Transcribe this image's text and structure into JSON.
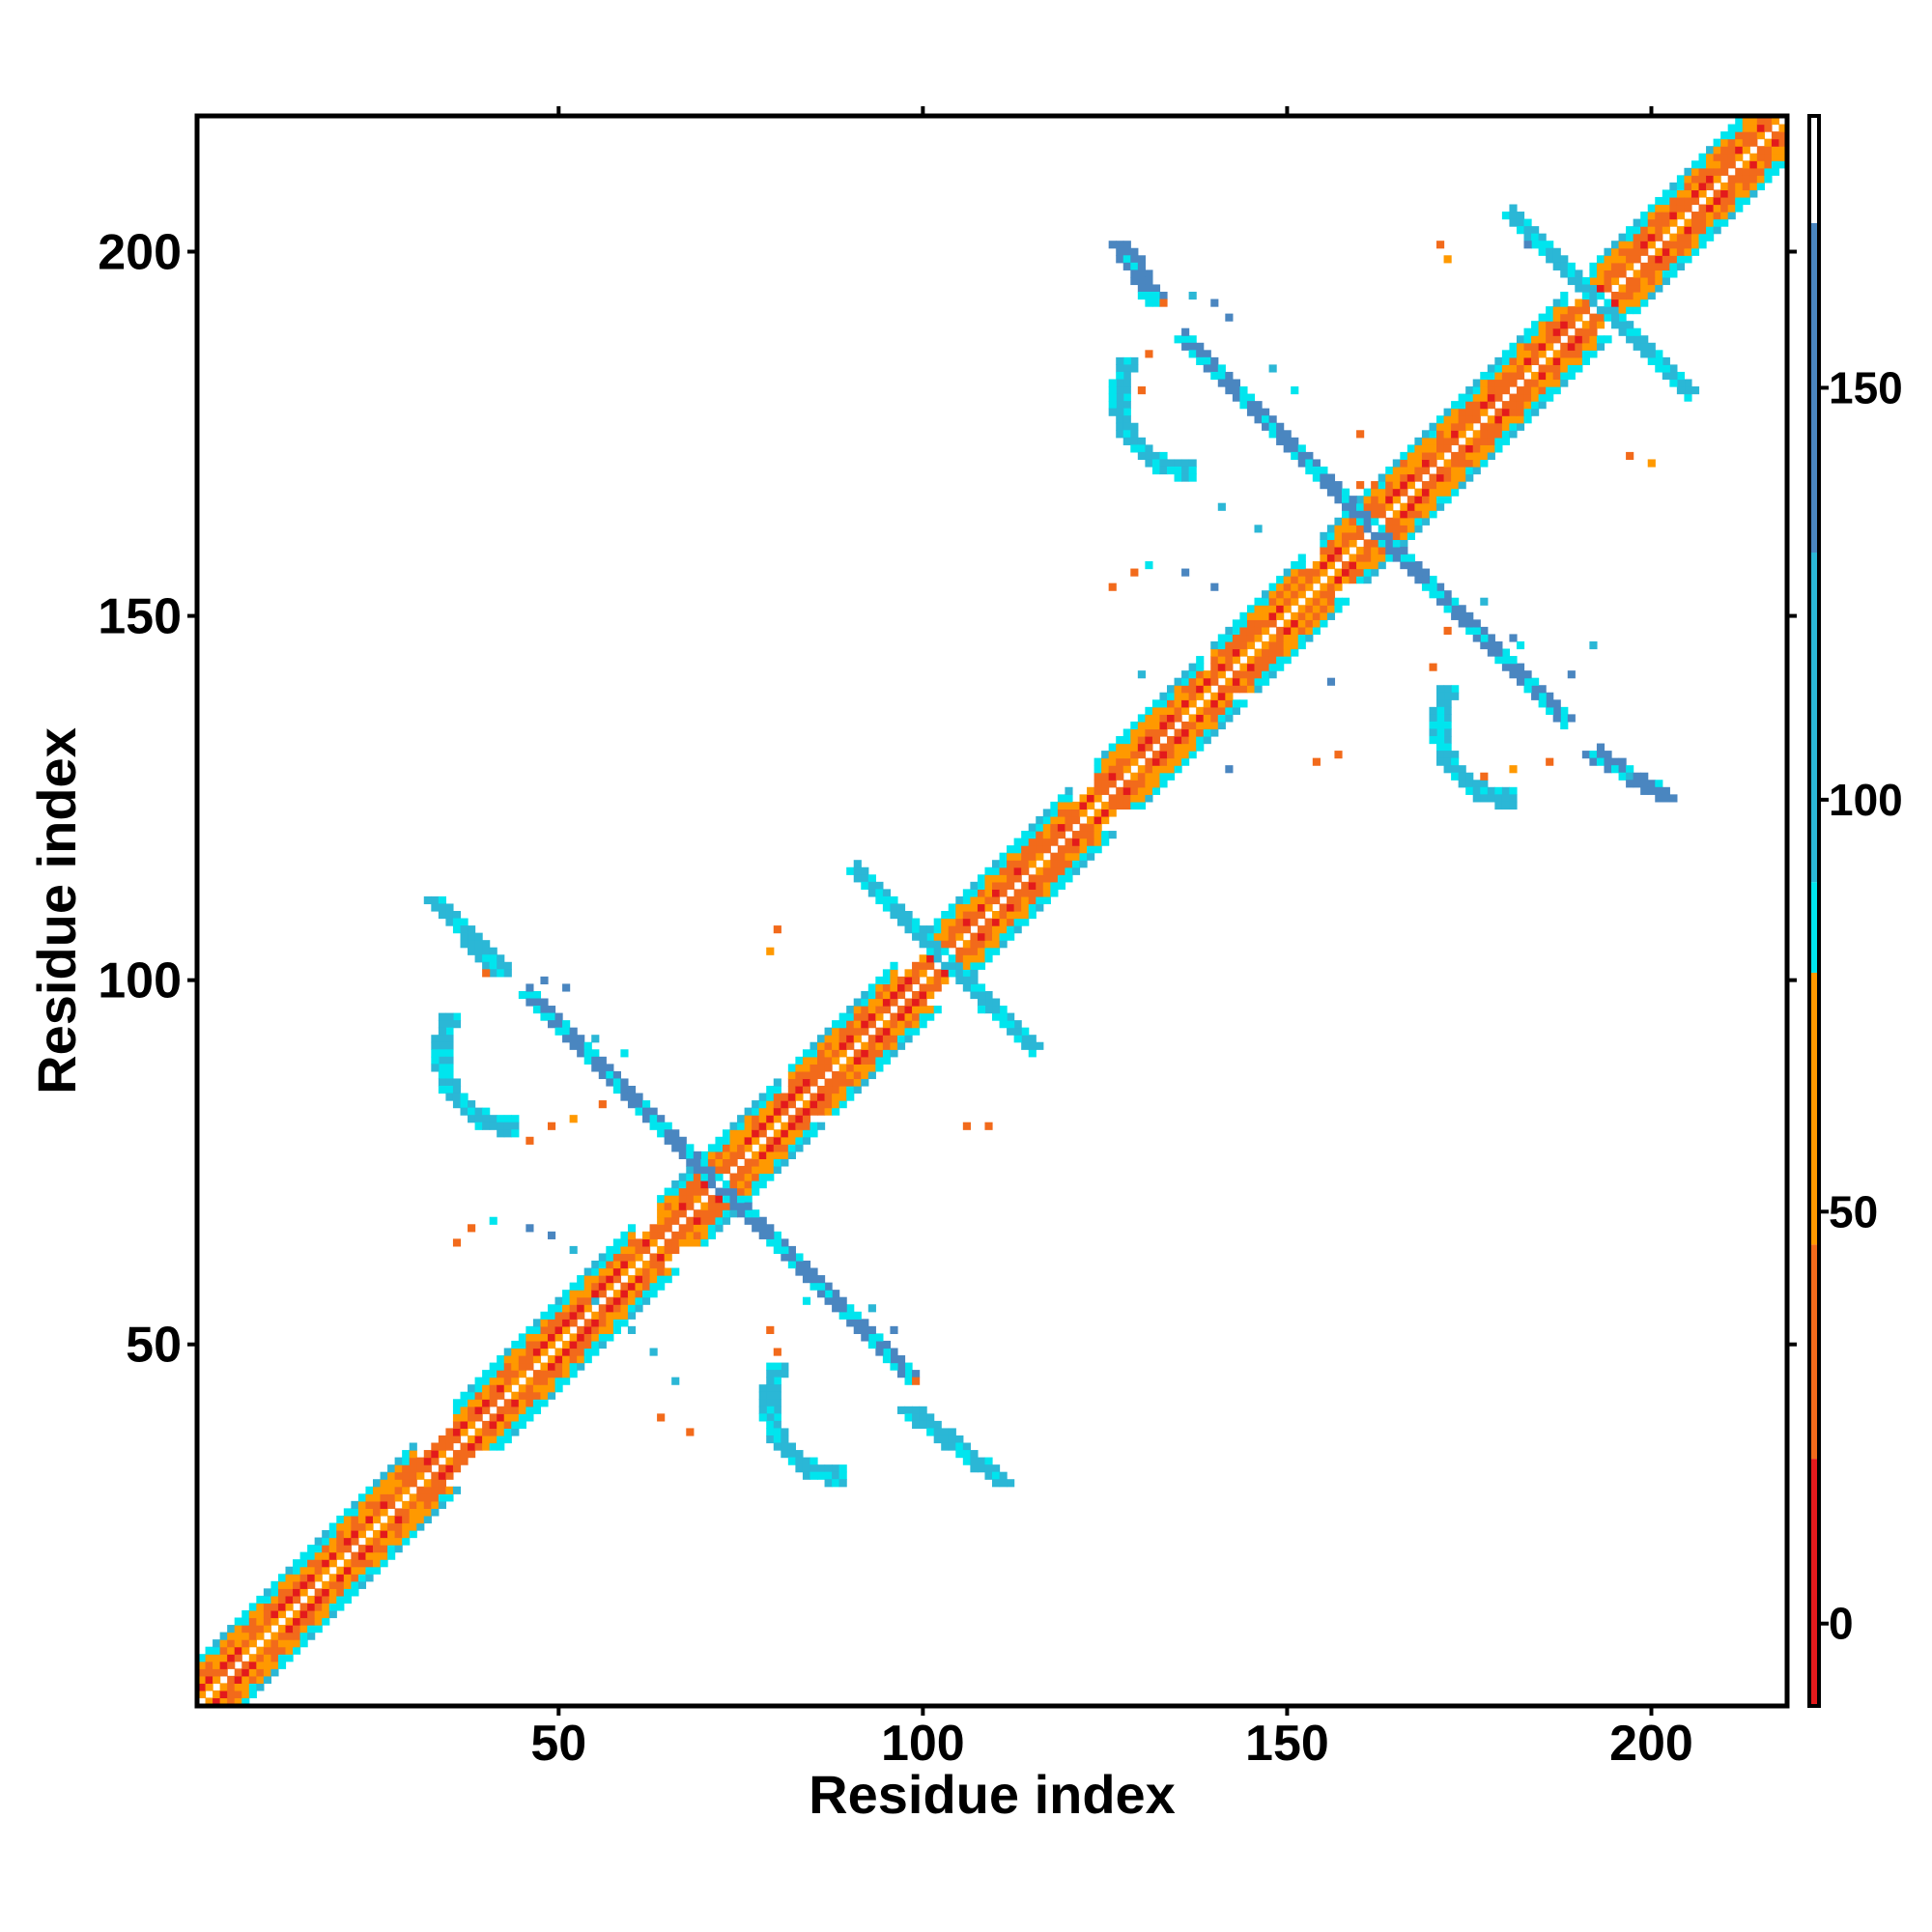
{
  "chart_data": {
    "type": "heatmap",
    "title": "",
    "xlabel": "Residue index",
    "ylabel": "Residue index",
    "xlim": [
      1,
      218
    ],
    "ylim": [
      1,
      218
    ],
    "x_ticks": [
      50,
      100,
      150,
      200
    ],
    "y_ticks": [
      50,
      100,
      150,
      200
    ],
    "x_tick_labels": [
      "50",
      "100",
      "150",
      "200"
    ],
    "y_tick_labels": [
      "50",
      "100",
      "150",
      "200"
    ],
    "colorbar": {
      "range": [
        -10,
        183
      ],
      "ticks": [
        0,
        50,
        100,
        150
      ],
      "tick_labels": [
        "0",
        "50",
        "100",
        "150"
      ],
      "bands": [
        {
          "from": -10,
          "to": 20,
          "color": "#e31a1c"
        },
        {
          "from": 20,
          "to": 46,
          "color": "#f26a1b"
        },
        {
          "from": 46,
          "to": 79,
          "color": "#ff9900"
        },
        {
          "from": 79,
          "to": 90,
          "color": "#00e5ee"
        },
        {
          "from": 90,
          "to": 130,
          "color": "#2bb7d6"
        },
        {
          "from": 130,
          "to": 170,
          "color": "#4a86c0"
        },
        {
          "from": 170,
          "to": 183,
          "color": "#ffffff"
        }
      ]
    },
    "grid": false,
    "legend": "colorbar-right",
    "features": {
      "diagonal_band": {
        "from": 1,
        "to": 218,
        "half_width": 6
      },
      "helix_segments": [
        [
          1,
          30
        ],
        [
          36,
          60
        ],
        [
          64,
          80
        ],
        [
          82,
          96
        ],
        [
          101,
          120
        ],
        [
          124,
          138
        ],
        [
          140,
          152
        ],
        [
          155,
          170
        ],
        [
          171,
          188
        ],
        [
          192,
          218
        ]
      ],
      "antidiagonal_strands": [
        {
          "center": [
            72,
            72
          ],
          "length": 26,
          "value": 140
        },
        {
          "center": [
            103,
            103
          ],
          "length": 12,
          "value": 115
        },
        {
          "center": [
            162,
            162
          ],
          "length": 26,
          "value": 140
        },
        {
          "center": [
            193,
            193
          ],
          "length": 12,
          "value": 115
        }
      ],
      "offdiagonal_segments": [
        {
          "from": [
            33,
            111
          ],
          "to": [
            42,
            101
          ],
          "value": 120
        },
        {
          "from": [
            98,
            41
          ],
          "to": [
            111,
            31
          ],
          "value": 120
        },
        {
          "from": [
            127,
            201
          ],
          "to": [
            132,
            193
          ],
          "value": 140
        },
        {
          "from": [
            192,
            131
          ],
          "to": [
            202,
            125
          ],
          "value": 140
        }
      ],
      "offdiagonal_arcs": [
        {
          "center": [
            44,
            90
          ],
          "radius": 10,
          "start_deg": 150,
          "end_deg": 270,
          "value": 125
        },
        {
          "center": [
            89,
            42
          ],
          "radius": 10,
          "start_deg": 150,
          "end_deg": 270,
          "value": 125
        },
        {
          "center": [
            137,
            180
          ],
          "radius": 10,
          "start_deg": 150,
          "end_deg": 270,
          "value": 125
        },
        {
          "center": [
            181,
            135
          ],
          "radius": 10,
          "start_deg": 150,
          "end_deg": 270,
          "value": 125
        }
      ],
      "scattered_contacts": [
        {
          "x": 36,
          "y": 64,
          "value": 20
        },
        {
          "x": 38,
          "y": 66,
          "value": 40
        },
        {
          "x": 41,
          "y": 67,
          "value": 85
        },
        {
          "x": 46,
          "y": 66,
          "value": 140
        },
        {
          "x": 49,
          "y": 65,
          "value": 135
        },
        {
          "x": 52,
          "y": 63,
          "value": 115
        },
        {
          "x": 55,
          "y": 56,
          "value": 120
        },
        {
          "x": 60,
          "y": 52,
          "value": 120
        },
        {
          "x": 63,
          "y": 49,
          "value": 115
        },
        {
          "x": 66,
          "y": 45,
          "value": 90
        },
        {
          "x": 64,
          "y": 40,
          "value": 20
        },
        {
          "x": 68,
          "y": 38,
          "value": 30
        },
        {
          "x": 79,
          "y": 52,
          "value": 40
        },
        {
          "x": 80,
          "y": 49,
          "value": 20
        },
        {
          "x": 84,
          "y": 56,
          "value": 85
        },
        {
          "x": 93,
          "y": 55,
          "value": 125
        },
        {
          "x": 96,
          "y": 52,
          "value": 140
        },
        {
          "x": 99,
          "y": 45,
          "value": 20
        },
        {
          "x": 46,
          "y": 78,
          "value": 40
        },
        {
          "x": 49,
          "y": 80,
          "value": 20
        },
        {
          "x": 52,
          "y": 81,
          "value": 50
        },
        {
          "x": 56,
          "y": 83,
          "value": 40
        },
        {
          "x": 40,
          "y": 101,
          "value": 20
        },
        {
          "x": 43,
          "y": 101,
          "value": 125
        },
        {
          "x": 48,
          "y": 100,
          "value": 140
        },
        {
          "x": 51,
          "y": 99,
          "value": 140
        },
        {
          "x": 79,
          "y": 104,
          "value": 50
        },
        {
          "x": 80,
          "y": 107,
          "value": 40
        },
        {
          "x": 106,
          "y": 80,
          "value": 40
        },
        {
          "x": 109,
          "y": 80,
          "value": 30
        },
        {
          "x": 108,
          "y": 96,
          "value": 85
        },
        {
          "x": 55,
          "y": 92,
          "value": 90
        },
        {
          "x": 59,
          "y": 90,
          "value": 85
        },
        {
          "x": 126,
          "y": 154,
          "value": 20
        },
        {
          "x": 129,
          "y": 156,
          "value": 40
        },
        {
          "x": 131,
          "y": 157,
          "value": 85
        },
        {
          "x": 136,
          "y": 156,
          "value": 140
        },
        {
          "x": 140,
          "y": 154,
          "value": 130
        },
        {
          "x": 130,
          "y": 142,
          "value": 120
        },
        {
          "x": 133,
          "y": 193,
          "value": 20
        },
        {
          "x": 137,
          "y": 194,
          "value": 125
        },
        {
          "x": 140,
          "y": 193,
          "value": 140
        },
        {
          "x": 142,
          "y": 191,
          "value": 135
        },
        {
          "x": 131,
          "y": 186,
          "value": 30
        },
        {
          "x": 130,
          "y": 181,
          "value": 40
        },
        {
          "x": 148,
          "y": 184,
          "value": 125
        },
        {
          "x": 151,
          "y": 181,
          "value": 85
        },
        {
          "x": 160,
          "y": 168,
          "value": 40
        },
        {
          "x": 162,
          "y": 168,
          "value": 30
        },
        {
          "x": 166,
          "y": 171,
          "value": 20
        },
        {
          "x": 172,
          "y": 199,
          "value": 50
        },
        {
          "x": 171,
          "y": 201,
          "value": 40
        },
        {
          "x": 183,
          "y": 201,
          "value": 140
        },
        {
          "x": 186,
          "y": 200,
          "value": 90
        },
        {
          "x": 197,
          "y": 172,
          "value": 40
        },
        {
          "x": 200,
          "y": 171,
          "value": 50
        },
        {
          "x": 192,
          "y": 146,
          "value": 125
        },
        {
          "x": 189,
          "y": 142,
          "value": 140
        },
        {
          "x": 181,
          "y": 147,
          "value": 140
        },
        {
          "x": 177,
          "y": 152,
          "value": 125
        },
        {
          "x": 172,
          "y": 148,
          "value": 40
        },
        {
          "x": 170,
          "y": 143,
          "value": 20
        },
        {
          "x": 156,
          "y": 141,
          "value": 140
        },
        {
          "x": 154,
          "y": 130,
          "value": 30
        },
        {
          "x": 157,
          "y": 131,
          "value": 40
        },
        {
          "x": 142,
          "y": 129,
          "value": 140
        },
        {
          "x": 177,
          "y": 128,
          "value": 30
        },
        {
          "x": 181,
          "y": 129,
          "value": 50
        },
        {
          "x": 186,
          "y": 130,
          "value": 40
        },
        {
          "x": 197,
          "y": 128,
          "value": 120
        },
        {
          "x": 193,
          "y": 132,
          "value": 140
        },
        {
          "x": 160,
          "y": 175,
          "value": 40
        },
        {
          "x": 146,
          "y": 162,
          "value": 125
        },
        {
          "x": 141,
          "y": 165,
          "value": 90
        },
        {
          "x": 182,
          "y": 146,
          "value": 85
        }
      ]
    }
  }
}
